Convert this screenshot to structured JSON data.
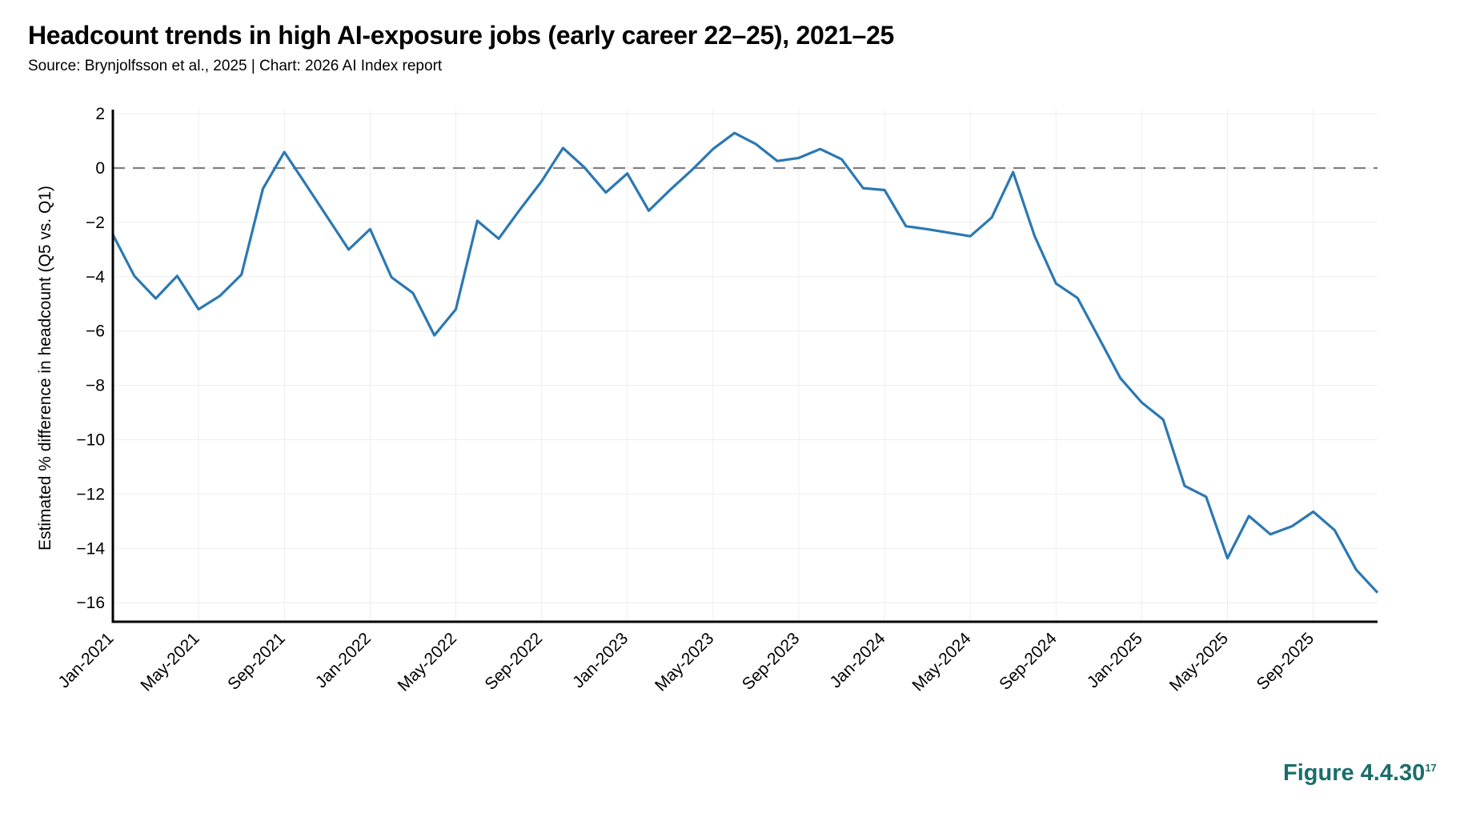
{
  "header": {
    "title": "Headcount trends in high AI-exposure jobs (early career 22–25), 2021–25",
    "subtitle": "Source: Brynjolfsson et al., 2025 | Chart: 2026 AI Index report"
  },
  "footer": {
    "figure_label": "Figure 4.4.30",
    "footnote_ref": "17",
    "figure_color": "#1a6e6a"
  },
  "colors": {
    "line": "#2b78b3",
    "reference_line": "#808080",
    "grid": "#eeeeee",
    "axis": "#000000"
  },
  "chart_data": {
    "type": "line",
    "title": "Headcount trends in high AI-exposure jobs (early career 22–25), 2021–25",
    "subtitle": "Source: Brynjolfsson et al., 2025 | Chart: 2026 AI Index report",
    "xlabel": "",
    "ylabel": "Estimated % difference in headcount (Q5 vs. Q1)",
    "ylim": [
      -16.7,
      2.15
    ],
    "yticks": [
      2,
      0,
      -2,
      -4,
      -6,
      -8,
      -10,
      -12,
      -14,
      -16
    ],
    "ytick_labels": [
      "2",
      "0",
      "−2",
      "−4",
      "−6",
      "−8",
      "−10",
      "−12",
      "−14",
      "−16"
    ],
    "xtick_labels": [
      "Jan-2021",
      "May-2021",
      "Sep-2021",
      "Jan-2022",
      "May-2022",
      "Sep-2022",
      "Jan-2023",
      "May-2023",
      "Sep-2023",
      "Jan-2024",
      "May-2024",
      "Sep-2024",
      "Jan-2025",
      "May-2025",
      "Sep-2025"
    ],
    "xtick_every_months": 4,
    "grid": true,
    "reference_line": {
      "y": 0,
      "style": "dashed"
    },
    "legend": null,
    "x": [
      "Jan-2021",
      "Feb-2021",
      "Mar-2021",
      "Apr-2021",
      "May-2021",
      "Jun-2021",
      "Jul-2021",
      "Aug-2021",
      "Sep-2021",
      "Oct-2021",
      "Nov-2021",
      "Dec-2021",
      "Jan-2022",
      "Feb-2022",
      "Mar-2022",
      "Apr-2022",
      "May-2022",
      "Jun-2022",
      "Jul-2022",
      "Aug-2022",
      "Sep-2022",
      "Oct-2022",
      "Nov-2022",
      "Dec-2022",
      "Jan-2023",
      "Feb-2023",
      "Mar-2023",
      "Apr-2023",
      "May-2023",
      "Jun-2023",
      "Jul-2023",
      "Aug-2023",
      "Sep-2023",
      "Oct-2023",
      "Nov-2023",
      "Dec-2023",
      "Jan-2024",
      "Feb-2024",
      "Mar-2024",
      "Apr-2024",
      "May-2024",
      "Jun-2024",
      "Jul-2024",
      "Aug-2024",
      "Sep-2024",
      "Oct-2024",
      "Nov-2024",
      "Dec-2024",
      "Jan-2025",
      "Feb-2025",
      "Mar-2025",
      "Apr-2025",
      "May-2025",
      "Jun-2025",
      "Jul-2025",
      "Aug-2025",
      "Sep-2025",
      "Oct-2025",
      "Nov-2025",
      "Dec-2025"
    ],
    "series": [
      {
        "name": "Q5 vs. Q1 headcount difference (%)",
        "values": [
          -2.45,
          -3.97,
          -4.8,
          -3.97,
          -5.2,
          -4.7,
          -3.92,
          -0.76,
          0.59,
          -0.6,
          -1.8,
          -3.0,
          -2.25,
          -4.02,
          -4.6,
          -6.16,
          -5.2,
          -1.94,
          -2.6,
          -1.52,
          -0.49,
          0.74,
          0.02,
          -0.9,
          -0.2,
          -1.57,
          -0.8,
          -0.08,
          0.7,
          1.29,
          0.88,
          0.26,
          0.37,
          0.7,
          0.32,
          -0.74,
          -0.81,
          -2.14,
          -2.25,
          -2.38,
          -2.51,
          -1.82,
          -0.15,
          -2.5,
          -4.25,
          -4.78,
          -6.25,
          -7.73,
          -8.63,
          -9.26,
          -11.7,
          -12.1,
          -14.36,
          -12.81,
          -13.48,
          -13.19,
          -12.65,
          -13.33,
          -14.78,
          -15.63
        ]
      }
    ]
  }
}
